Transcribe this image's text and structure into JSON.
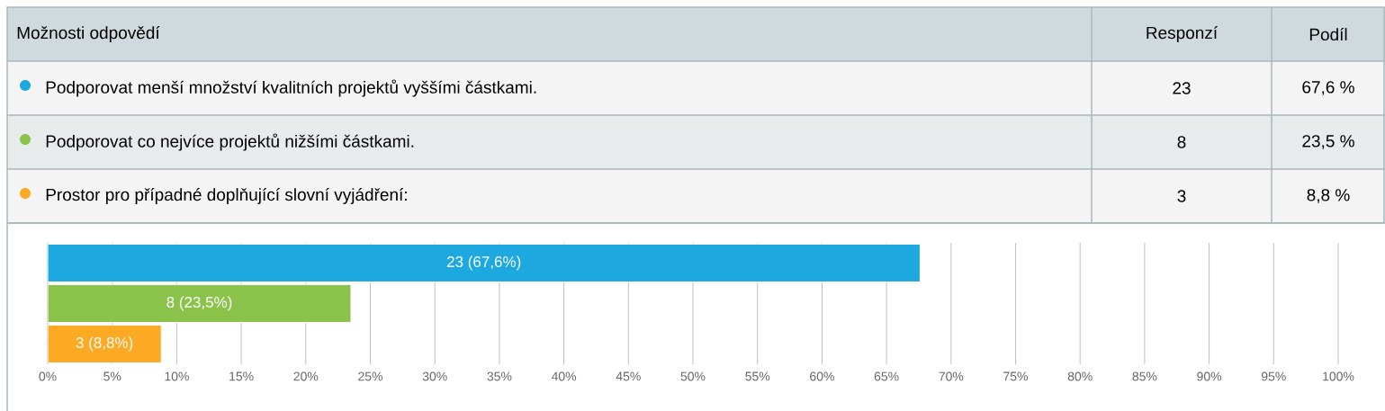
{
  "chart_data": {
    "type": "bar",
    "orientation": "horizontal",
    "categories": [
      null,
      null,
      null
    ],
    "series": [
      {
        "name": "Podporovat menší množství kvalitních projektů vyššími částkami.",
        "color": "#1ea8e0",
        "values": [
          67.6,
          null,
          null
        ],
        "value_labels": [
          "23 (67,6%)",
          null,
          null
        ]
      },
      {
        "name": "Podporovat co nejvíce projektů nižšími částkami.",
        "color": "#8bc34a",
        "values": [
          null,
          23.5,
          null
        ],
        "value_labels": [
          null,
          "8 (23,5%)",
          null
        ]
      },
      {
        "name": "Prostor pro případné doplňující slovní vyjádření:",
        "color": "#fca923",
        "values": [
          null,
          null,
          8.8
        ],
        "value_labels": [
          null,
          null,
          "3 (8,8%)"
        ]
      }
    ],
    "legend": "top",
    "xlim": [
      0,
      100
    ],
    "xticks": [
      {
        "value": 0,
        "label": "0%"
      },
      {
        "value": 5,
        "label": "5%"
      },
      {
        "value": 10,
        "label": "10%"
      },
      {
        "value": 15,
        "label": "15%"
      },
      {
        "value": 20,
        "label": "20%"
      },
      {
        "value": 25,
        "label": "25%"
      },
      {
        "value": 30,
        "label": "30%"
      },
      {
        "value": 35,
        "label": "35%"
      },
      {
        "value": 40,
        "label": "40%"
      },
      {
        "value": 45,
        "label": "45%"
      },
      {
        "value": 50,
        "label": "50%"
      },
      {
        "value": 55,
        "label": "55%"
      },
      {
        "value": 60,
        "label": "60%"
      },
      {
        "value": 65,
        "label": "65%"
      },
      {
        "value": 70,
        "label": "70%"
      },
      {
        "value": 75,
        "label": "75%"
      },
      {
        "value": 80,
        "label": "80%"
      },
      {
        "value": 85,
        "label": "85%"
      },
      {
        "value": 90,
        "label": "90%"
      },
      {
        "value": 95,
        "label": "95%"
      },
      {
        "value": 100,
        "label": "100%"
      }
    ],
    "grid": "x",
    "tick_labels": "x",
    "annotations": [
      "Možnosti odpovědí",
      "Responzí",
      "Podíl",
      "23",
      "67,6 %",
      "8",
      "23,5 %",
      "3",
      "8,8 %"
    ]
  }
}
